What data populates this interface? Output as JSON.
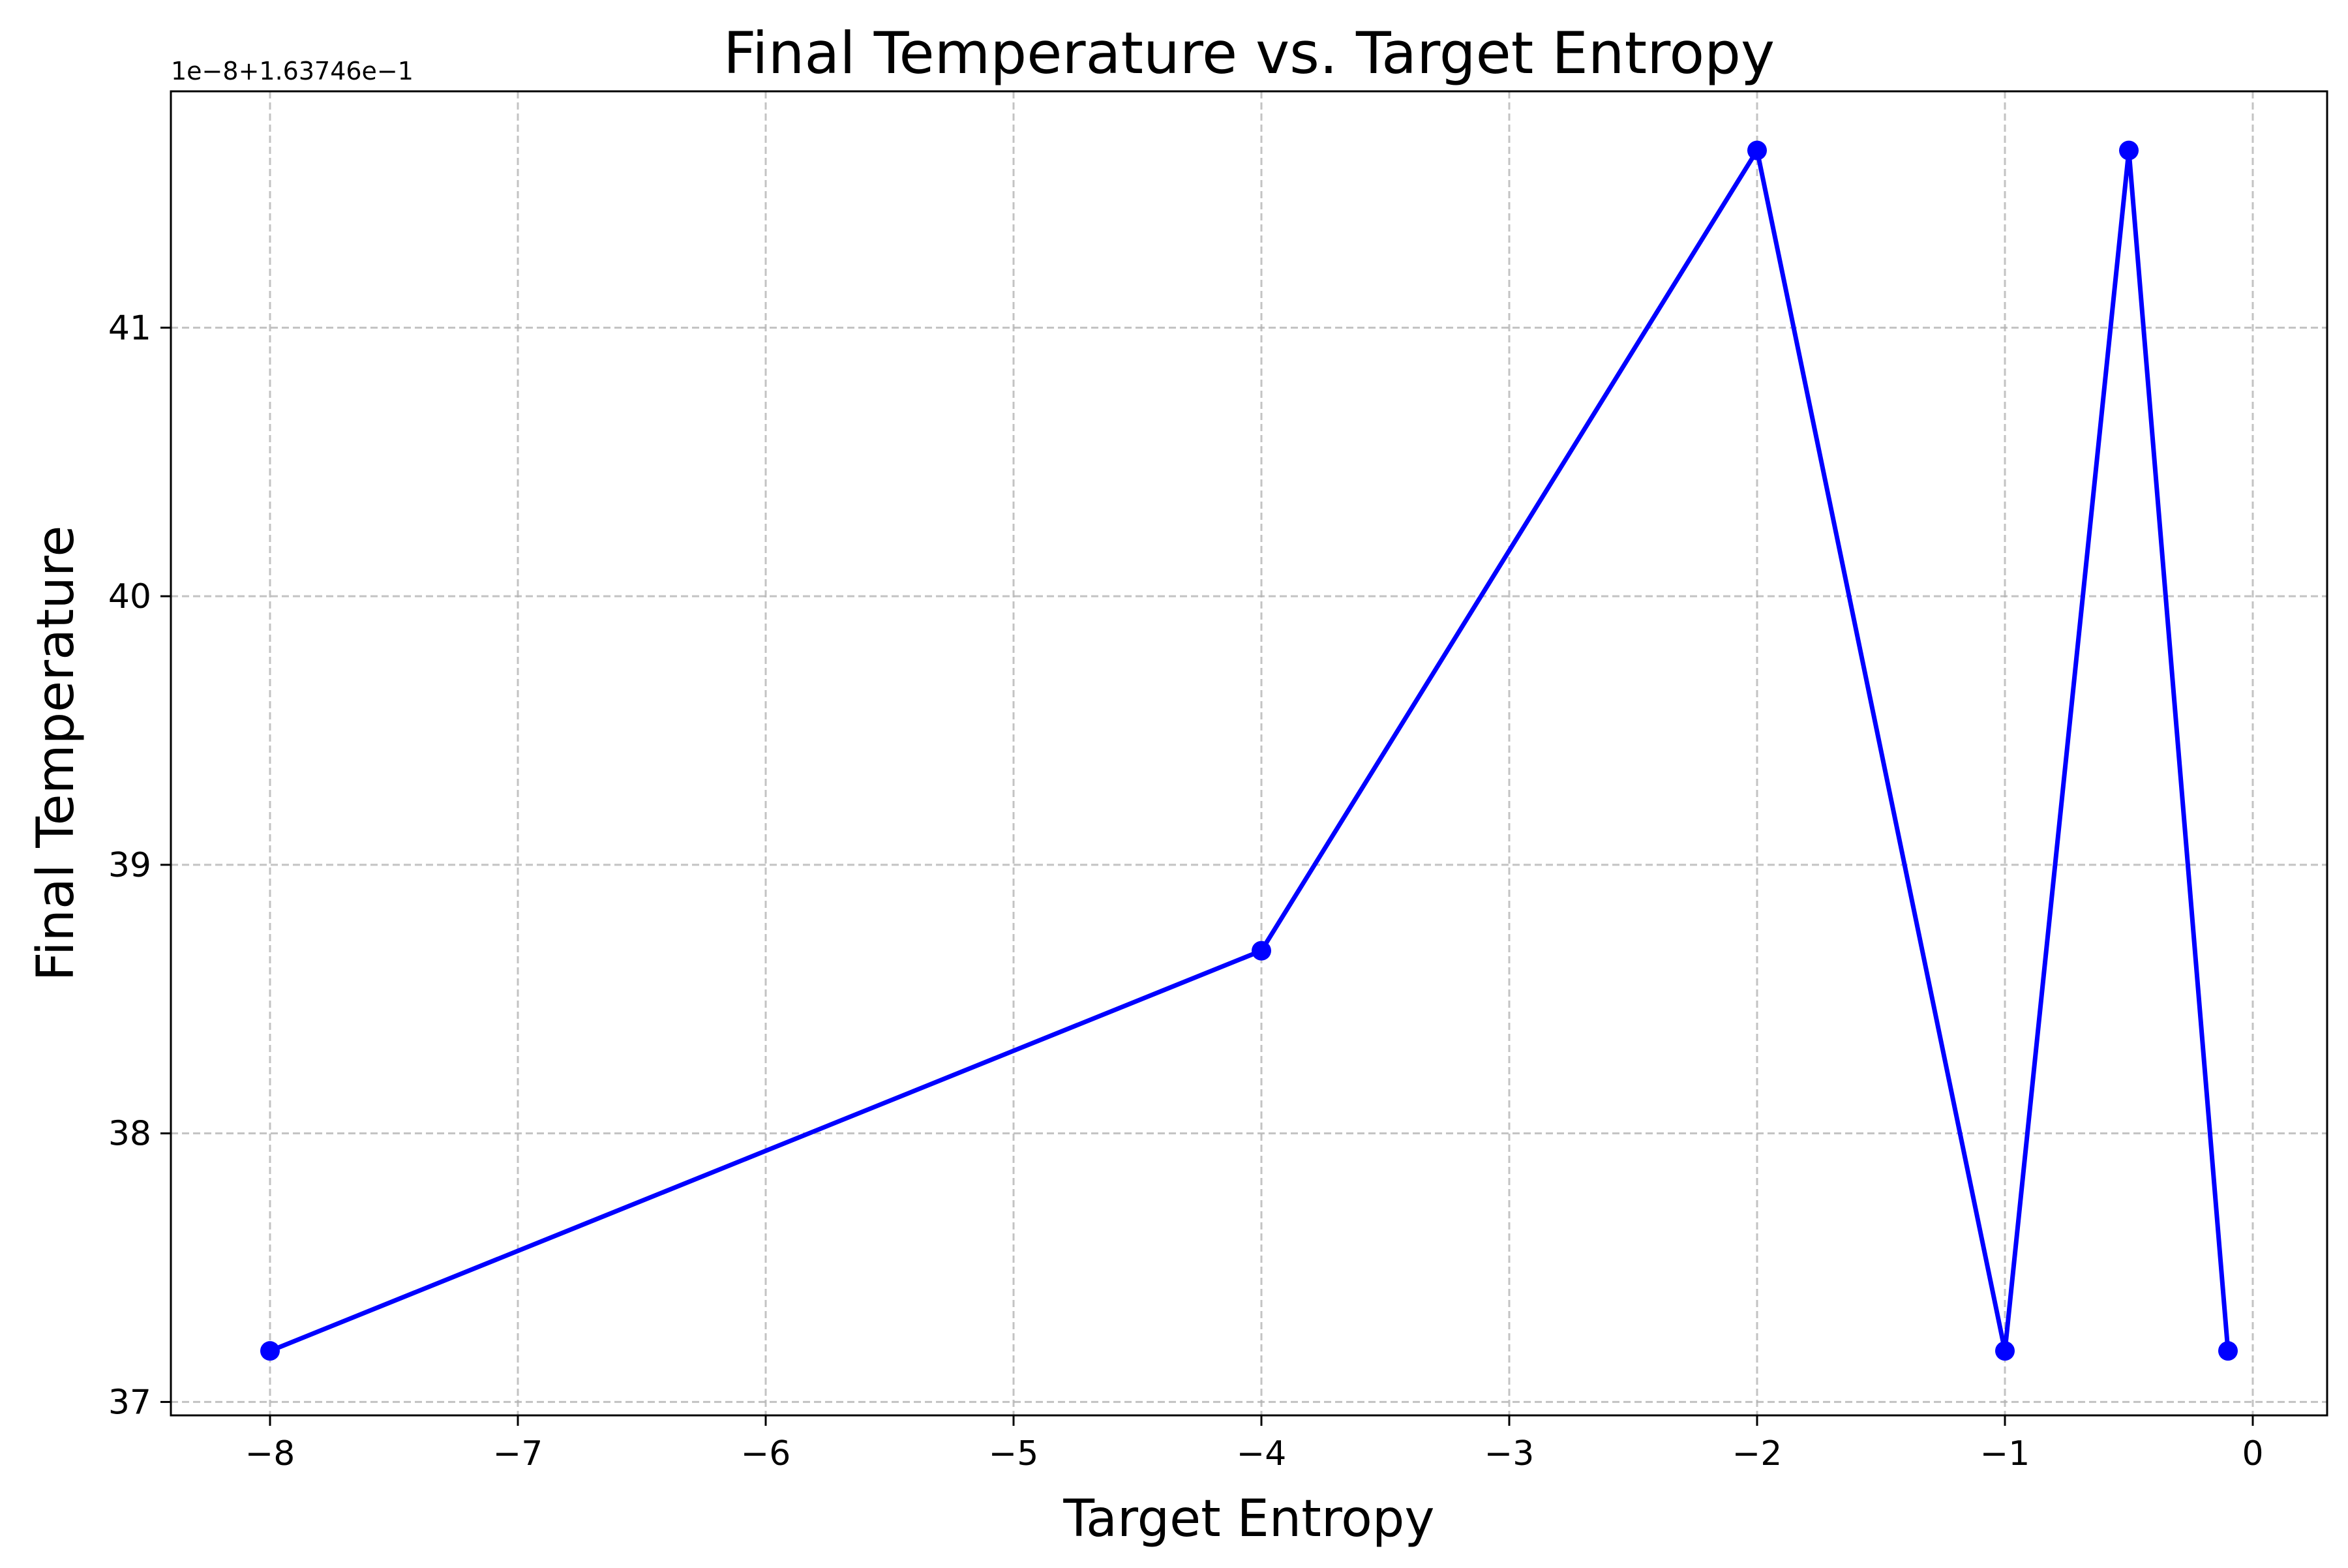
{
  "chart_data": {
    "type": "line",
    "title": "Final Temperature vs. Target Entropy",
    "xlabel": "Target Entropy",
    "ylabel": "Final Temperature",
    "y_offset_text": "1e−8+1.63746e−1",
    "xlim": [
      -8.4,
      0.3
    ],
    "ylim": [
      36.95,
      41.88
    ],
    "x_ticks": [
      -8,
      -7,
      -6,
      -5,
      -4,
      -3,
      -2,
      -1,
      0
    ],
    "x_tick_labels": [
      "−8",
      "−7",
      "−6",
      "−5",
      "−4",
      "−3",
      "−2",
      "−1",
      "0"
    ],
    "y_ticks": [
      37,
      38,
      39,
      40,
      41
    ],
    "y_tick_labels": [
      "37",
      "38",
      "39",
      "40",
      "41"
    ],
    "grid": true,
    "series": [
      {
        "color": "#0000ff",
        "marker": "circle",
        "x": [
          -8,
          -4,
          -2,
          -1,
          -0.5,
          -0.1
        ],
        "y": [
          37.19,
          38.68,
          41.66,
          37.19,
          41.66,
          37.19
        ]
      }
    ]
  }
}
